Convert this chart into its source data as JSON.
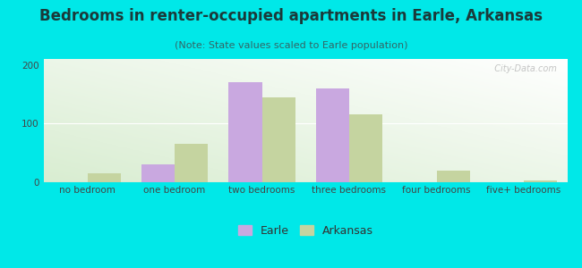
{
  "title": "Bedrooms in renter-occupied apartments in Earle, Arkansas",
  "subtitle": "(Note: State values scaled to Earle population)",
  "categories": [
    "no bedroom",
    "one bedroom",
    "two bedrooms",
    "three bedrooms",
    "four bedrooms",
    "five+ bedrooms"
  ],
  "earle_values": [
    0,
    30,
    170,
    160,
    0,
    0
  ],
  "arkansas_values": [
    15,
    65,
    145,
    115,
    20,
    3
  ],
  "earle_color": "#c9a8e0",
  "arkansas_color": "#c5d4a0",
  "background_outer": "#00e8e8",
  "ylim": [
    0,
    210
  ],
  "yticks": [
    0,
    100,
    200
  ],
  "bar_width": 0.38,
  "title_fontsize": 12,
  "subtitle_fontsize": 8,
  "tick_fontsize": 7.5,
  "legend_fontsize": 9
}
